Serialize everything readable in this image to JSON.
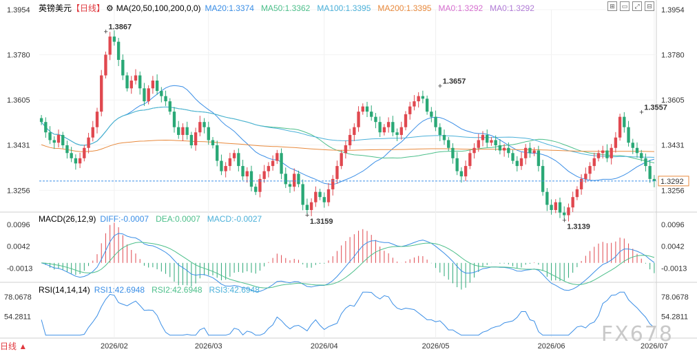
{
  "header": {
    "symbol": "英镑美元",
    "period": "【日线】",
    "ma_label": "MA(20,50,100,200,0,0)",
    "ma_items": [
      {
        "text": "MA20:1.3374",
        "color": "#3a8ee6"
      },
      {
        "text": "MA50:1.3362",
        "color": "#4cbf8a"
      },
      {
        "text": "MA100:1.3395",
        "color": "#4ab0d9"
      },
      {
        "text": "MA200:1.3395",
        "color": "#e8893c"
      },
      {
        "text": "MA0:1.3292",
        "color": "#d66fcf"
      },
      {
        "text": "MA0:1.3292",
        "color": "#b07bd6"
      }
    ],
    "macd_label": "MACD(26,12,9)",
    "macd_items": [
      {
        "text": "DIFF:-0.0007",
        "color": "#3a8ee6"
      },
      {
        "text": "DEA:0.0007",
        "color": "#4cbf8a"
      },
      {
        "text": "MACD:-0.0027",
        "color": "#4ab0d9"
      }
    ],
    "rsi_label": "RSI(14,14,14)",
    "rsi_items": [
      {
        "text": "RSI1:42.6948",
        "color": "#3a8ee6"
      },
      {
        "text": "RSI2:42.6948",
        "color": "#4cbf8a"
      },
      {
        "text": "RSI3:42.6948",
        "color": "#4ab0d9"
      }
    ]
  },
  "footer": {
    "mode": "日线 ▲"
  },
  "watermark": "FX678",
  "toolbar_icons": [
    "grid-icon",
    "chart-icon",
    "zoom-icon",
    "layout-icon"
  ],
  "chart_data": {
    "type": "candlestick",
    "price_axis": {
      "ticks": [
        "1.3954",
        "1.3780",
        "1.3605",
        "1.3431",
        "1.3256"
      ],
      "min": 1.318,
      "max": 1.3954
    },
    "x_ticks": [
      "2026/02",
      "2026/03",
      "2026/04",
      "2026/05",
      "2026/06",
      "2026/07"
    ],
    "last_price": "1.3292",
    "annotations": [
      {
        "text": "1.3867",
        "value": 1.3867,
        "kind": "high"
      },
      {
        "text": "1.3159",
        "value": 1.3159,
        "kind": "low"
      },
      {
        "text": "1.3657",
        "value": 1.3657,
        "kind": "high"
      },
      {
        "text": "1.3139",
        "value": 1.3139,
        "kind": "low"
      },
      {
        "text": "1.3557",
        "value": 1.3557,
        "kind": "high"
      }
    ],
    "closes": [
      1.352,
      1.348,
      1.345,
      1.344,
      1.347,
      1.343,
      1.34,
      1.338,
      1.336,
      1.338,
      1.342,
      1.346,
      1.35,
      1.356,
      1.37,
      1.378,
      1.385,
      1.383,
      1.376,
      1.37,
      1.365,
      1.368,
      1.37,
      1.365,
      1.36,
      1.365,
      1.368,
      1.364,
      1.362,
      1.36,
      1.356,
      1.35,
      1.347,
      1.35,
      1.347,
      1.343,
      1.348,
      1.352,
      1.35,
      1.345,
      1.343,
      1.337,
      1.333,
      1.335,
      1.338,
      1.34,
      1.335,
      1.331,
      1.333,
      1.327,
      1.325,
      1.33,
      1.333,
      1.335,
      1.337,
      1.34,
      1.332,
      1.328,
      1.327,
      1.332,
      1.328,
      1.32,
      1.318,
      1.321,
      1.325,
      1.323,
      1.321,
      1.326,
      1.33,
      1.335,
      1.34,
      1.343,
      1.347,
      1.35,
      1.356,
      1.358,
      1.356,
      1.354,
      1.352,
      1.348,
      1.35,
      1.352,
      1.348,
      1.347,
      1.35,
      1.355,
      1.358,
      1.36,
      1.362,
      1.361,
      1.356,
      1.354,
      1.35,
      1.347,
      1.345,
      1.342,
      1.338,
      1.333,
      1.331,
      1.335,
      1.34,
      1.342,
      1.345,
      1.347,
      1.344,
      1.345,
      1.343,
      1.341,
      1.342,
      1.34,
      1.337,
      1.335,
      1.338,
      1.342,
      1.34,
      1.341,
      1.335,
      1.325,
      1.32,
      1.318,
      1.321,
      1.317,
      1.316,
      1.319,
      1.323,
      1.326,
      1.33,
      1.332,
      1.335,
      1.338,
      1.34,
      1.341,
      1.338,
      1.342,
      1.346,
      1.354,
      1.35,
      1.344,
      1.342,
      1.34,
      1.338,
      1.335,
      1.33,
      1.3292
    ],
    "macd": {
      "axis_ticks": [
        "0.0096",
        "0.0042",
        "-0.0013"
      ],
      "min": -0.004,
      "max": 0.011
    },
    "rsi": {
      "axis_ticks": [
        "78.0678",
        "54.2811"
      ],
      "min": 30,
      "max": 85
    }
  }
}
